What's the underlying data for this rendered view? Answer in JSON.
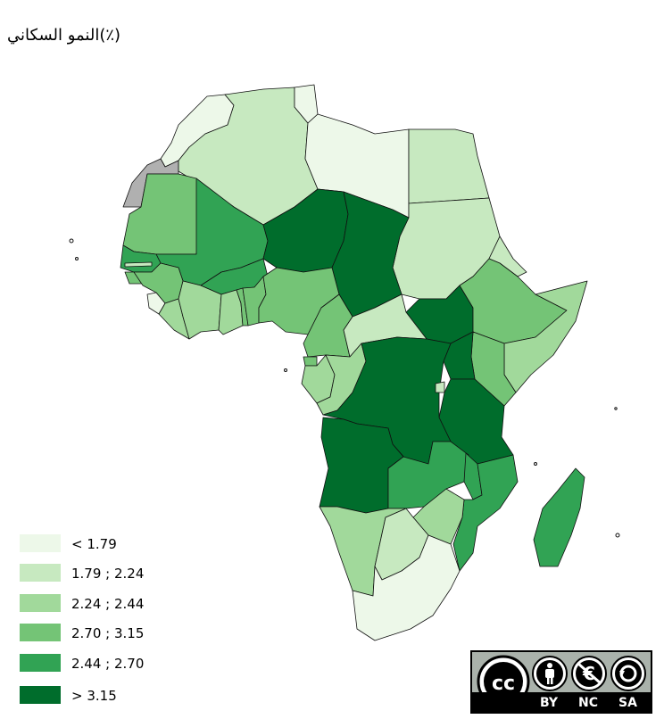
{
  "map": {
    "title": "النمو السكاني(٪)",
    "colors": {
      "lightest": "#edf8e9",
      "light": "#c7e9c0",
      "mid_light": "#a1d99b",
      "mid": "#74c476",
      "mid_dark": "#31a354",
      "darkest": "#006d2c",
      "no_data": "#b0b0b0"
    }
  },
  "legend": {
    "items": [
      {
        "label": "< 1.79",
        "color": "#edf8e9"
      },
      {
        "label": "1.79 ; 2.24",
        "color": "#c7e9c0"
      },
      {
        "label": "2.24 ; 2.44",
        "color": "#a1d99b"
      },
      {
        "label": "2.70 ; 3.15",
        "color": "#74c476"
      },
      {
        "label": "2.44 ; 2.70",
        "color": "#31a354"
      },
      {
        "label": "> 3.15",
        "color": "#006d2c"
      }
    ]
  },
  "license": {
    "cc": "cc",
    "by": "BY",
    "nc": "NC",
    "sa": "SA",
    "icon_names": [
      "cc-icon",
      "by-person-icon",
      "nc-no-currency-icon",
      "sa-share-alike-icon"
    ]
  }
}
